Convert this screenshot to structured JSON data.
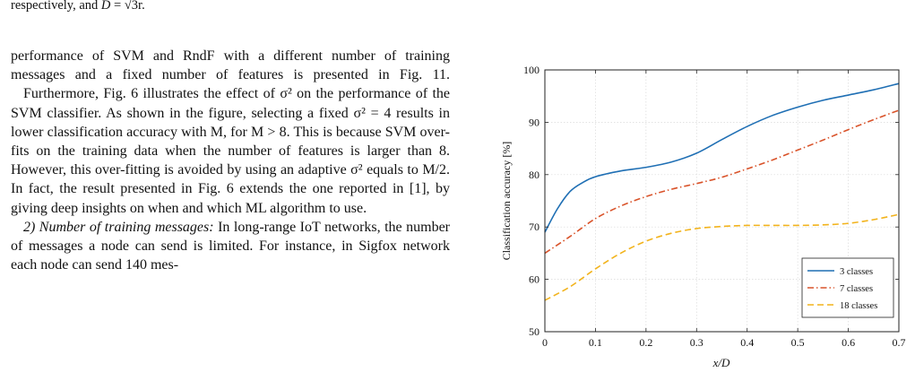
{
  "caption_tail": {
    "text": "respectively, and ",
    "var": "D",
    "rest": " = √3r."
  },
  "body_text": {
    "p1": "performance of SVM and RndF with a different number of training messages and a fixed number of features is presented in Fig. 11.",
    "p2": "Furthermore, Fig. 6 illustrates the effect of σ² on the performance of the SVM classifier. As shown in the figure, selecting a fixed σ² = 4 results in lower classification accuracy with M, for M > 8. This is because SVM over-fits on the training data when the number of features is larger than 8. However, this over-fitting is avoided by using an adaptive σ² equals to M/2. In fact, the result presented in Fig. 6 extends the one reported in [1], by giving deep insights on when and which ML algorithm to use.",
    "p3_heading": "2) Number of training messages:",
    "p3": " In long-range IoT networks, the number of messages a node can send is limited. For instance, in Sigfox network each node can send 140 mes-"
  },
  "chart_data": {
    "type": "line",
    "xlabel": "x/D",
    "ylabel": "Classification accuracy [%]",
    "xlim": [
      0,
      0.7
    ],
    "ylim": [
      50,
      100
    ],
    "x_ticks": [
      "0",
      "0.1",
      "0.2",
      "0.3",
      "0.4",
      "0.5",
      "0.6",
      "0.7"
    ],
    "y_ticks": [
      "50",
      "60",
      "70",
      "80",
      "90",
      "100"
    ],
    "legend_position": "bottom-right",
    "grid": true,
    "series": [
      {
        "name": "3 classes",
        "color": "#1f6fb4",
        "dash": "solid",
        "x": [
          0,
          0.025,
          0.05,
          0.075,
          0.1,
          0.15,
          0.2,
          0.25,
          0.3,
          0.35,
          0.4,
          0.45,
          0.5,
          0.55,
          0.6,
          0.65,
          0.7
        ],
        "y": [
          69,
          73.5,
          76.8,
          78.5,
          79.6,
          80.7,
          81.4,
          82.4,
          84.1,
          86.7,
          89.2,
          91.3,
          92.9,
          94.2,
          95.2,
          96.2,
          97.4
        ]
      },
      {
        "name": "7 classes",
        "color": "#d9532a",
        "dash": "dashdot",
        "x": [
          0,
          0.05,
          0.1,
          0.15,
          0.2,
          0.25,
          0.3,
          0.35,
          0.4,
          0.45,
          0.5,
          0.55,
          0.6,
          0.65,
          0.7
        ],
        "y": [
          65,
          68.2,
          71.6,
          74,
          75.8,
          77.2,
          78.3,
          79.5,
          81.1,
          82.8,
          84.7,
          86.6,
          88.6,
          90.5,
          92.3
        ]
      },
      {
        "name": "18 classes",
        "color": "#f2b31c",
        "dash": "dashed",
        "x": [
          0,
          0.05,
          0.1,
          0.15,
          0.2,
          0.25,
          0.3,
          0.35,
          0.4,
          0.45,
          0.5,
          0.55,
          0.6,
          0.65,
          0.7
        ],
        "y": [
          56,
          58.6,
          62,
          65,
          67.3,
          68.8,
          69.7,
          70.1,
          70.3,
          70.3,
          70.3,
          70.4,
          70.7,
          71.4,
          72.4
        ]
      }
    ]
  }
}
